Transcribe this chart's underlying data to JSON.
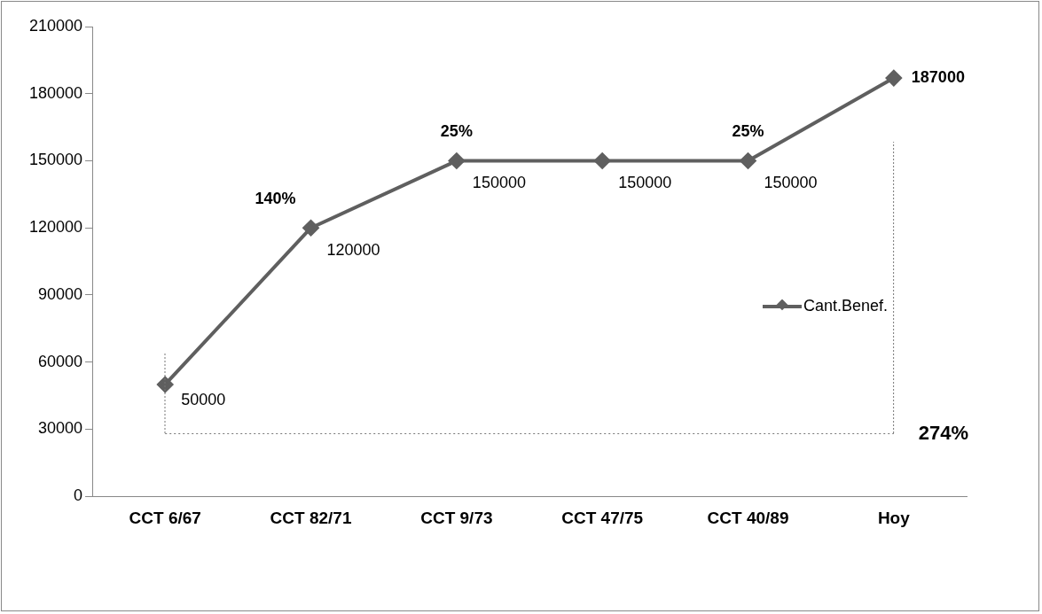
{
  "chart_data": {
    "type": "line",
    "categories": [
      "CCT 6/67",
      "CCT 82/71",
      "CCT 9/73",
      "CCT 47/75",
      "CCT 40/89",
      "Hoy"
    ],
    "series": [
      {
        "name": "Cant.Benef.",
        "color": "#5f5f5f",
        "values": [
          50000,
          120000,
          150000,
          150000,
          150000,
          187000
        ]
      }
    ],
    "ylim": [
      0,
      210000
    ],
    "yticks": [
      0,
      30000,
      60000,
      90000,
      120000,
      150000,
      180000,
      210000
    ],
    "grid": false,
    "legend": "right",
    "marker": "diamond",
    "line_style": "solid",
    "data_labels": true,
    "annotations": [
      {
        "text": "140%",
        "x": "CCT 82/71",
        "y": 120000
      },
      {
        "text": "25%",
        "x": "CCT 9/73",
        "y": 150000
      },
      {
        "text": "25%",
        "x": "CCT 40/89",
        "y": 150000
      },
      "274%"
    ],
    "ref_lines": [
      {
        "axis": "y",
        "value": 28000,
        "color": "#777777",
        "line_style": "dotted"
      }
    ]
  }
}
